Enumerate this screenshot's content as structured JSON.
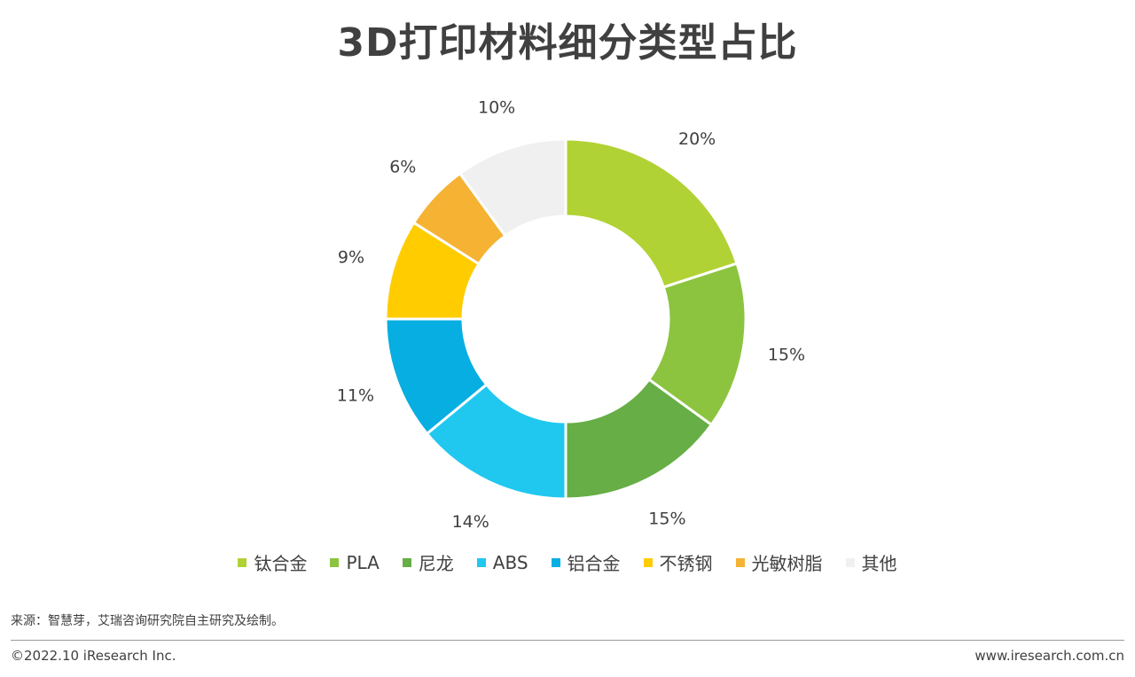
{
  "title": "3D打印材料细分类型占比",
  "chart_data": {
    "type": "pie",
    "donut": true,
    "title": "3D打印材料细分类型占比",
    "categories": [
      "钛合金",
      "PLA",
      "尼龙",
      "ABS",
      "铝合金",
      "不锈钢",
      "光敏树脂",
      "其他"
    ],
    "values": [
      20,
      15,
      15,
      14,
      11,
      9,
      6,
      10
    ],
    "labels": [
      "20%",
      "15%",
      "15%",
      "14%",
      "11%",
      "9%",
      "6%",
      "10%"
    ],
    "colors": [
      "#b1d234",
      "#8cc43f",
      "#66ae45",
      "#20c8f0",
      "#07aee1",
      "#ffcc00",
      "#f5b233",
      "#f0f0f0"
    ],
    "legend_position": "bottom"
  },
  "footer": {
    "source": "来源：智慧芽，艾瑞咨询研究院自主研究及绘制。",
    "copyright": "©2022.10 iResearch Inc.",
    "website": "www.iresearch.com.cn"
  }
}
